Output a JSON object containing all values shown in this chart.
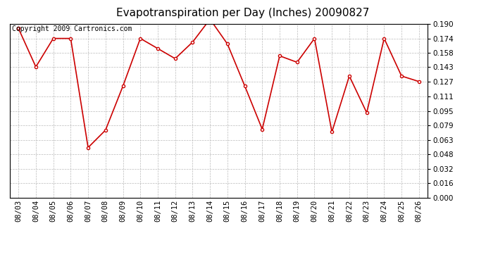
{
  "title": "Evapotranspiration per Day (Inches) 20090827",
  "copyright": "Copyright 2009 Cartronics.com",
  "dates": [
    "08/03",
    "08/04",
    "08/05",
    "08/06",
    "08/07",
    "08/08",
    "08/09",
    "08/10",
    "08/11",
    "08/12",
    "08/13",
    "08/14",
    "08/15",
    "08/16",
    "08/17",
    "08/18",
    "08/19",
    "08/20",
    "08/21",
    "08/22",
    "08/23",
    "08/24",
    "08/25",
    "08/26"
  ],
  "values": [
    0.185,
    0.143,
    0.174,
    0.174,
    0.055,
    0.074,
    0.122,
    0.174,
    0.163,
    0.152,
    0.17,
    0.195,
    0.168,
    0.122,
    0.075,
    0.155,
    0.148,
    0.174,
    0.072,
    0.133,
    0.093,
    0.174,
    0.133,
    0.127
  ],
  "line_color": "#cc0000",
  "marker": "o",
  "marker_size": 3,
  "ylim_max": 0.19,
  "yticks": [
    0.0,
    0.016,
    0.032,
    0.048,
    0.063,
    0.079,
    0.095,
    0.111,
    0.127,
    0.143,
    0.158,
    0.174,
    0.19
  ],
  "bg_color": "#ffffff",
  "grid_color": "#bbbbbb",
  "title_fontsize": 11,
  "copyright_fontsize": 7
}
